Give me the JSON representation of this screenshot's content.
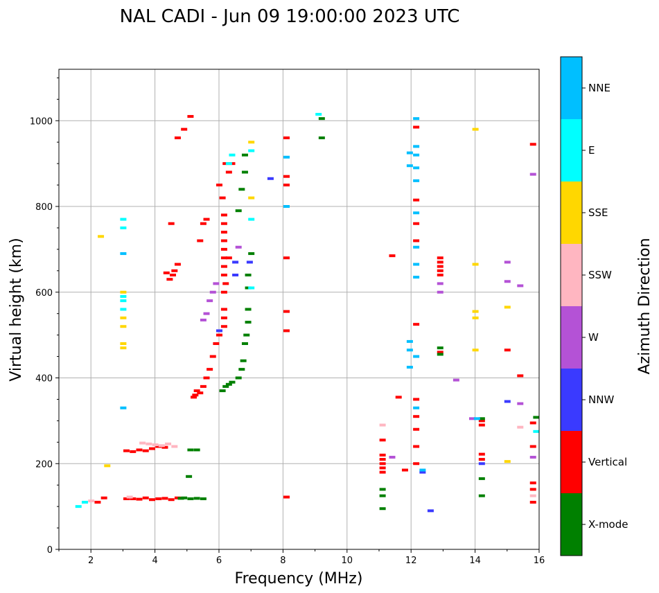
{
  "chart_data": {
    "type": "scatter",
    "title": "NAL CADI - Jun 09 19:00:00 2023 UTC",
    "xlabel": "Frequency (MHz)",
    "ylabel": "Virtual height (km)",
    "xlim": [
      1,
      16
    ],
    "ylim": [
      0,
      1120
    ],
    "xticks": [
      2,
      4,
      6,
      8,
      10,
      12,
      14,
      16
    ],
    "yticks": [
      0,
      200,
      400,
      600,
      800,
      1000
    ],
    "grid": true,
    "colorbar": {
      "title": "Azimuth Direction",
      "categories": [
        {
          "name": "X-mode",
          "color": "#008000"
        },
        {
          "name": "Vertical",
          "color": "#ff0000"
        },
        {
          "name": "NNW",
          "color": "#3a3aff"
        },
        {
          "name": "W",
          "color": "#b452d6"
        },
        {
          "name": "SSW",
          "color": "#ffb6c1"
        },
        {
          "name": "SSE",
          "color": "#ffd700"
        },
        {
          "name": "E",
          "color": "#00ffff"
        },
        {
          "name": "NNE",
          "color": "#00bfff"
        }
      ]
    },
    "series": [
      {
        "name": "Vertical",
        "color": "#ff0000",
        "points": [
          [
            5.1,
            1010
          ],
          [
            4.9,
            980
          ],
          [
            4.7,
            960
          ],
          [
            4.5,
            760
          ],
          [
            4.35,
            645
          ],
          [
            4.45,
            630
          ],
          [
            4.6,
            650
          ],
          [
            4.7,
            665
          ],
          [
            4.55,
            640
          ],
          [
            5.5,
            760
          ],
          [
            5.6,
            770
          ],
          [
            5.4,
            720
          ],
          [
            5.3,
            370
          ],
          [
            5.4,
            365
          ],
          [
            5.5,
            380
          ],
          [
            5.6,
            400
          ],
          [
            5.7,
            420
          ],
          [
            5.8,
            450
          ],
          [
            5.9,
            480
          ],
          [
            6.0,
            500
          ],
          [
            5.2,
            355
          ],
          [
            5.25,
            360
          ],
          [
            3.1,
            230
          ],
          [
            3.3,
            228
          ],
          [
            3.5,
            232
          ],
          [
            3.7,
            230
          ],
          [
            3.9,
            235
          ],
          [
            4.1,
            240
          ],
          [
            4.3,
            238
          ],
          [
            3.1,
            118
          ],
          [
            3.3,
            118
          ],
          [
            3.5,
            117
          ],
          [
            3.7,
            120
          ],
          [
            3.9,
            116
          ],
          [
            4.1,
            118
          ],
          [
            4.3,
            119
          ],
          [
            4.5,
            116
          ],
          [
            4.7,
            120
          ],
          [
            2.4,
            120
          ],
          [
            2.2,
            110
          ],
          [
            6.15,
            760
          ],
          [
            6.15,
            740
          ],
          [
            6.15,
            720
          ],
          [
            6.15,
            700
          ],
          [
            6.15,
            780
          ],
          [
            6.15,
            680
          ],
          [
            6.15,
            660
          ],
          [
            6.15,
            640
          ],
          [
            6.15,
            600
          ],
          [
            6.15,
            560
          ],
          [
            6.15,
            540
          ],
          [
            6.15,
            520
          ],
          [
            6.2,
            900
          ],
          [
            6.0,
            850
          ],
          [
            6.1,
            820
          ],
          [
            6.3,
            880
          ],
          [
            6.4,
            900
          ],
          [
            6.3,
            680
          ],
          [
            6.2,
            620
          ],
          [
            8.1,
            960
          ],
          [
            8.1,
            870
          ],
          [
            8.1,
            850
          ],
          [
            8.1,
            680
          ],
          [
            8.1,
            555
          ],
          [
            8.1,
            510
          ],
          [
            8.1,
            122
          ],
          [
            11.1,
            220
          ],
          [
            11.1,
            210
          ],
          [
            11.1,
            200
          ],
          [
            11.1,
            190
          ],
          [
            11.1,
            180
          ],
          [
            11.1,
            255
          ],
          [
            11.4,
            685
          ],
          [
            11.6,
            355
          ],
          [
            11.8,
            185
          ],
          [
            12.15,
            985
          ],
          [
            12.15,
            815
          ],
          [
            12.15,
            760
          ],
          [
            12.15,
            720
          ],
          [
            12.15,
            525
          ],
          [
            12.15,
            350
          ],
          [
            12.15,
            310
          ],
          [
            12.15,
            280
          ],
          [
            12.15,
            240
          ],
          [
            12.15,
            200
          ],
          [
            12.9,
            680
          ],
          [
            12.9,
            670
          ],
          [
            12.9,
            660
          ],
          [
            12.9,
            650
          ],
          [
            12.9,
            640
          ],
          [
            12.9,
            460
          ],
          [
            14.2,
            300
          ],
          [
            14.2,
            290
          ],
          [
            14.2,
            222
          ],
          [
            14.2,
            210
          ],
          [
            15.0,
            465
          ],
          [
            15.4,
            405
          ],
          [
            15.8,
            945
          ],
          [
            15.8,
            295
          ],
          [
            15.8,
            240
          ],
          [
            15.8,
            155
          ],
          [
            15.8,
            140
          ],
          [
            15.8,
            110
          ]
        ]
      },
      {
        "name": "X-mode",
        "color": "#008000",
        "points": [
          [
            4.9,
            120
          ],
          [
            5.1,
            118
          ],
          [
            5.3,
            119
          ],
          [
            5.5,
            118
          ],
          [
            4.8,
            119
          ],
          [
            5.1,
            232
          ],
          [
            5.3,
            232
          ],
          [
            5.05,
            170
          ],
          [
            6.6,
            400
          ],
          [
            6.7,
            420
          ],
          [
            6.75,
            440
          ],
          [
            6.8,
            480
          ],
          [
            6.85,
            500
          ],
          [
            6.9,
            530
          ],
          [
            6.9,
            560
          ],
          [
            6.2,
            380
          ],
          [
            6.3,
            385
          ],
          [
            6.4,
            390
          ],
          [
            6.1,
            370
          ],
          [
            6.6,
            790
          ],
          [
            6.7,
            840
          ],
          [
            6.8,
            880
          ],
          [
            6.8,
            920
          ],
          [
            7.0,
            690
          ],
          [
            6.9,
            610
          ],
          [
            6.9,
            640
          ],
          [
            9.2,
            960
          ],
          [
            9.2,
            1005
          ],
          [
            11.1,
            95
          ],
          [
            11.1,
            125
          ],
          [
            11.1,
            140
          ],
          [
            12.9,
            455
          ],
          [
            12.9,
            470
          ],
          [
            14.2,
            165
          ],
          [
            14.2,
            125
          ],
          [
            14.2,
            305
          ],
          [
            15.9,
            308
          ]
        ]
      },
      {
        "name": "NNW",
        "color": "#3a3aff",
        "points": [
          [
            6.5,
            640
          ],
          [
            6.5,
            670
          ],
          [
            6.95,
            670
          ],
          [
            6.0,
            510
          ],
          [
            7.6,
            865
          ],
          [
            12.6,
            90
          ],
          [
            12.35,
            180
          ],
          [
            14.2,
            200
          ],
          [
            15.0,
            345
          ]
        ]
      },
      {
        "name": "W",
        "color": "#b452d6",
        "points": [
          [
            5.6,
            550
          ],
          [
            5.7,
            580
          ],
          [
            5.8,
            600
          ],
          [
            5.9,
            620
          ],
          [
            5.5,
            535
          ],
          [
            6.6,
            705
          ],
          [
            12.9,
            620
          ],
          [
            12.9,
            600
          ],
          [
            13.4,
            395
          ],
          [
            13.9,
            305
          ],
          [
            15.0,
            670
          ],
          [
            15.0,
            625
          ],
          [
            15.4,
            615
          ],
          [
            15.4,
            340
          ],
          [
            15.8,
            875
          ],
          [
            15.8,
            215
          ],
          [
            11.4,
            215
          ]
        ]
      },
      {
        "name": "SSW",
        "color": "#ffb6c1",
        "points": [
          [
            3.6,
            248
          ],
          [
            3.8,
            246
          ],
          [
            4.0,
            244
          ],
          [
            4.2,
            242
          ],
          [
            4.4,
            246
          ],
          [
            4.6,
            240
          ],
          [
            3.2,
            122
          ],
          [
            2.0,
            113
          ],
          [
            15.4,
            285
          ],
          [
            15.8,
            125
          ],
          [
            11.1,
            290
          ]
        ]
      },
      {
        "name": "SSE",
        "color": "#ffd700",
        "points": [
          [
            3.0,
            470
          ],
          [
            3.0,
            480
          ],
          [
            3.0,
            520
          ],
          [
            3.0,
            540
          ],
          [
            3.0,
            600
          ],
          [
            2.3,
            730
          ],
          [
            2.5,
            195
          ],
          [
            7.0,
            820
          ],
          [
            7.0,
            950
          ],
          [
            14.0,
            980
          ],
          [
            14.0,
            665
          ],
          [
            14.0,
            555
          ],
          [
            14.0,
            540
          ],
          [
            14.0,
            465
          ],
          [
            15.0,
            565
          ],
          [
            15.0,
            205
          ]
        ]
      },
      {
        "name": "E",
        "color": "#00ffff",
        "points": [
          [
            3.0,
            580
          ],
          [
            3.0,
            590
          ],
          [
            3.0,
            560
          ],
          [
            3.0,
            770
          ],
          [
            3.0,
            750
          ],
          [
            1.6,
            100
          ],
          [
            1.8,
            110
          ],
          [
            6.3,
            900
          ],
          [
            7.0,
            930
          ],
          [
            7.0,
            770
          ],
          [
            7.0,
            610
          ],
          [
            6.4,
            920
          ],
          [
            9.1,
            1015
          ],
          [
            15.9,
            275
          ]
        ]
      },
      {
        "name": "NNE",
        "color": "#00bfff",
        "points": [
          [
            12.15,
            1005
          ],
          [
            12.15,
            940
          ],
          [
            12.15,
            920
          ],
          [
            12.15,
            890
          ],
          [
            12.15,
            860
          ],
          [
            12.15,
            785
          ],
          [
            12.15,
            705
          ],
          [
            12.15,
            665
          ],
          [
            12.15,
            635
          ],
          [
            11.95,
            925
          ],
          [
            11.95,
            895
          ],
          [
            11.95,
            485
          ],
          [
            11.95,
            465
          ],
          [
            11.95,
            425
          ],
          [
            12.15,
            450
          ],
          [
            12.15,
            330
          ],
          [
            8.1,
            800
          ],
          [
            8.1,
            915
          ],
          [
            3.0,
            690
          ],
          [
            3.0,
            330
          ],
          [
            14.05,
            305
          ],
          [
            12.35,
            185
          ]
        ]
      }
    ]
  }
}
